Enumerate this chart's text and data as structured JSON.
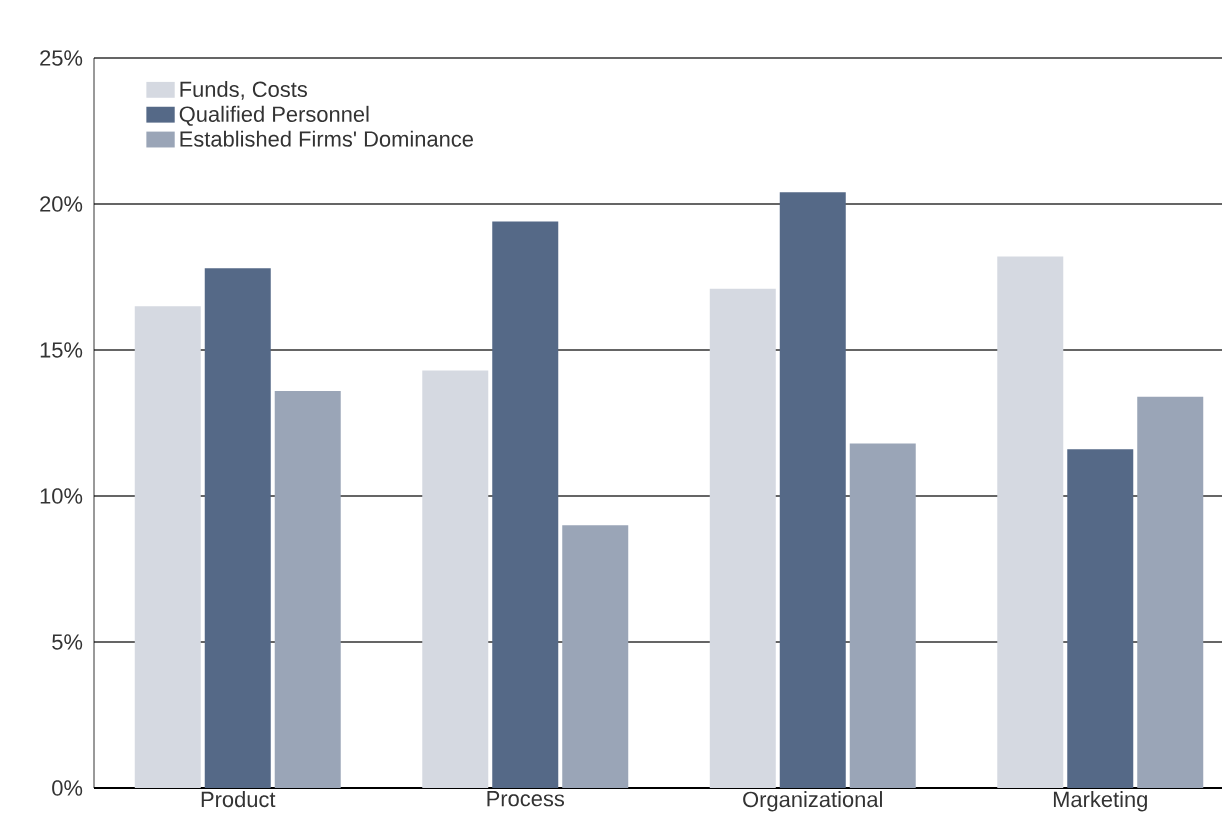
{
  "chart_data": {
    "type": "bar",
    "categories": [
      "Product",
      "Process",
      "Organizational",
      "Marketing"
    ],
    "series": [
      {
        "name": "Funds, Costs",
        "color": "#d5d9e1",
        "values": [
          16.5,
          14.3,
          17.1,
          18.2
        ]
      },
      {
        "name": "Qualified Personnel",
        "color": "#556987",
        "values": [
          17.8,
          19.4,
          20.4,
          11.6
        ]
      },
      {
        "name": "Established Firms' Dominance",
        "color": "#9aa5b7",
        "values": [
          13.6,
          9.0,
          11.8,
          13.4
        ]
      }
    ],
    "ylim": [
      0,
      25
    ],
    "yticks": [
      {
        "value": 0,
        "label": "0%"
      },
      {
        "value": 5,
        "label": "5%"
      },
      {
        "value": 10,
        "label": "10%"
      },
      {
        "value": 15,
        "label": "15%"
      },
      {
        "value": 20,
        "label": "20%"
      },
      {
        "value": 25,
        "label": "25%"
      }
    ],
    "grid": "y",
    "legend": "top left"
  }
}
